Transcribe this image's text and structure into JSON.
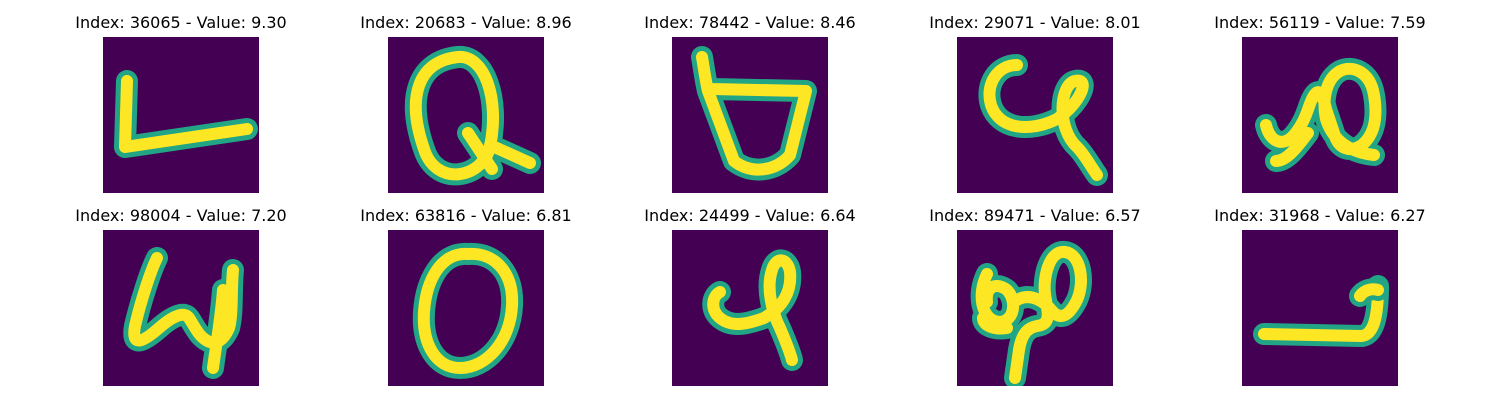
{
  "colors": {
    "background": "#440154",
    "stroke_core": "#FDE725",
    "stroke_edge": "#21A585"
  },
  "panels": [
    {
      "title": "Index: 36065 - Value: 9.30",
      "glyph": "L"
    },
    {
      "title": "Index: 20683 - Value: 8.96",
      "glyph": "Q"
    },
    {
      "title": "Index: 78442 - Value: 8.46",
      "glyph": "b"
    },
    {
      "title": "Index: 29071 - Value: 8.01",
      "glyph": "e"
    },
    {
      "title": "Index: 56119 - Value: 7.59",
      "glyph": "l"
    },
    {
      "title": "Index: 98004 - Value: 7.20",
      "glyph": "4"
    },
    {
      "title": "Index: 63816 - Value: 6.81",
      "glyph": "0"
    },
    {
      "title": "Index: 24499 - Value: 6.64",
      "glyph": "l"
    },
    {
      "title": "Index: 89471 - Value: 6.57",
      "glyph": "φ"
    },
    {
      "title": "Index: 31968 - Value: 6.27",
      "glyph": "J"
    }
  ]
}
